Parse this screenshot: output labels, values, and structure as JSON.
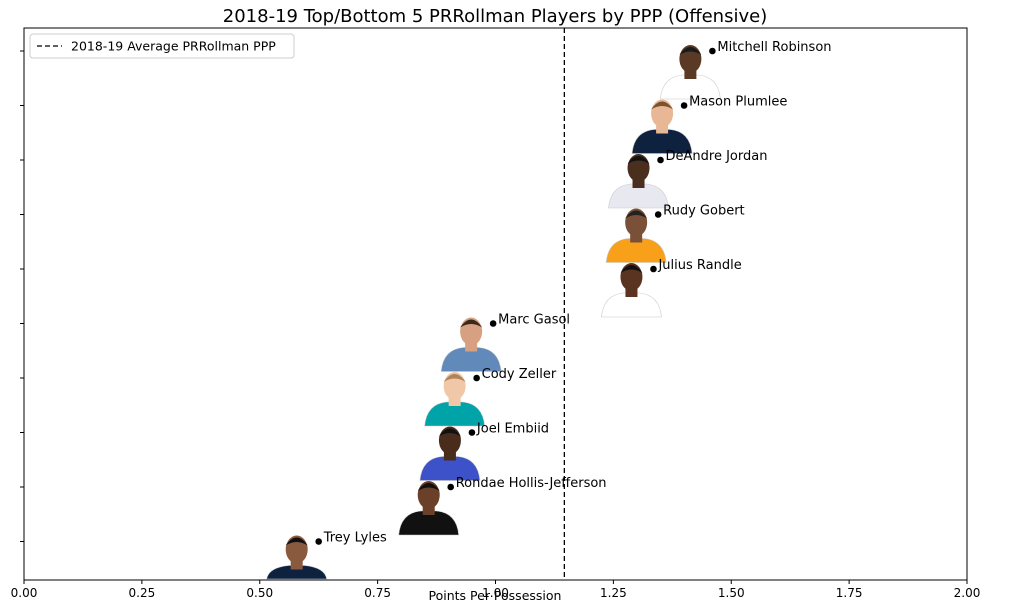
{
  "chart_data": {
    "type": "scatter",
    "title": "2018-19 Top/Bottom 5 PRRollman Players by PPP (Offensive)",
    "xlabel": "Points Per Possession",
    "ylabel": "",
    "xlim": [
      0,
      2
    ],
    "x_ticks": [
      0.0,
      0.25,
      0.5,
      0.75,
      1.0,
      1.25,
      1.5,
      1.75,
      2.0
    ],
    "x_tick_labels": [
      "0.00",
      "0.25",
      "0.50",
      "0.75",
      "1.00",
      "1.25",
      "1.50",
      "1.75",
      "2.00"
    ],
    "average_line": {
      "x": 1.146,
      "label": "2018-19 Average PRRollman PPP",
      "style": "dashed"
    },
    "legend_position": "top-left",
    "grid": false,
    "points": [
      {
        "name": "Mitchell Robinson",
        "x": 1.46,
        "jersey": "#ffffff",
        "skin": "#5b3a25",
        "hair": "#1a1a1a"
      },
      {
        "name": "Mason Plumlee",
        "x": 1.4,
        "jersey": "#0e2240",
        "skin": "#e8b896",
        "hair": "#7a5230"
      },
      {
        "name": "DeAndre Jordan",
        "x": 1.35,
        "jersey": "#e8e8f0",
        "skin": "#4a2e1e",
        "hair": "#111111"
      },
      {
        "name": "Rudy Gobert",
        "x": 1.345,
        "jersey": "#f9a01b",
        "skin": "#7a5038",
        "hair": "#222222"
      },
      {
        "name": "Julius Randle",
        "x": 1.335,
        "jersey": "#ffffff",
        "skin": "#5a3420",
        "hair": "#111111"
      },
      {
        "name": "Marc Gasol",
        "x": 0.995,
        "jersey": "#6189b9",
        "skin": "#d7a080",
        "hair": "#3a2a1e"
      },
      {
        "name": "Cody Zeller",
        "x": 0.96,
        "jersey": "#00a3a8",
        "skin": "#f0c8a8",
        "hair": "#b0835a"
      },
      {
        "name": "Joel Embiid",
        "x": 0.95,
        "jersey": "#3d52c8",
        "skin": "#4a2c1c",
        "hair": "#111111"
      },
      {
        "name": "Rondae Hollis-Jefferson",
        "x": 0.905,
        "jersey": "#111111",
        "skin": "#6a4028",
        "hair": "#111111"
      },
      {
        "name": "Trey Lyles",
        "x": 0.625,
        "jersey": "#0e2240",
        "skin": "#8a5a3e",
        "hair": "#111111"
      }
    ]
  },
  "colors": {
    "point": "#000000",
    "average_line": "#000000",
    "axes": "#000000"
  }
}
